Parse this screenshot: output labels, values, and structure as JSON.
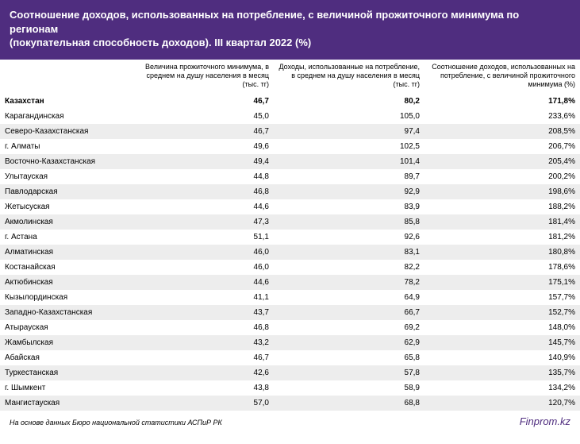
{
  "header": {
    "title_line1": "Соотношение доходов, использованных на потребление, с величиной прожиточного минимума по регионам",
    "title_line2": "(покупательная способность доходов). III квартал 2022 (%)",
    "color": "#4f2d7f"
  },
  "table": {
    "columns": [
      "",
      "Величина прожиточного минимума, в среднем на душу населения в месяц (тыс. тг)",
      "Доходы, использованные на потребление, в среднем на душу населения в месяц (тыс. тг)",
      "Соотношение доходов, использованных на потребление, с величиной прожиточного минимума (%)"
    ],
    "total_row": {
      "region": "Казахстан",
      "v1": "46,7",
      "v2": "80,2",
      "v3": "171,8%"
    },
    "rows": [
      {
        "region": "Карагандинская",
        "v1": "45,0",
        "v2": "105,0",
        "v3": "233,6%"
      },
      {
        "region": "Северо-Казахстанская",
        "v1": "46,7",
        "v2": "97,4",
        "v3": "208,5%"
      },
      {
        "region": "г. Алматы",
        "v1": "49,6",
        "v2": "102,5",
        "v3": "206,7%"
      },
      {
        "region": "Восточно-Казахстанская",
        "v1": "49,4",
        "v2": "101,4",
        "v3": "205,4%"
      },
      {
        "region": "Улытауская",
        "v1": "44,8",
        "v2": "89,7",
        "v3": "200,2%"
      },
      {
        "region": "Павлодарская",
        "v1": "46,8",
        "v2": "92,9",
        "v3": "198,6%"
      },
      {
        "region": "Жетысуская",
        "v1": "44,6",
        "v2": "83,9",
        "v3": "188,2%"
      },
      {
        "region": "Акмолинская",
        "v1": "47,3",
        "v2": "85,8",
        "v3": "181,4%"
      },
      {
        "region": "г. Астана",
        "v1": "51,1",
        "v2": "92,6",
        "v3": "181,2%"
      },
      {
        "region": "Алматинская",
        "v1": "46,0",
        "v2": "83,1",
        "v3": "180,8%"
      },
      {
        "region": "Костанайская",
        "v1": "46,0",
        "v2": "82,2",
        "v3": "178,6%"
      },
      {
        "region": "Актюбинская",
        "v1": "44,6",
        "v2": "78,2",
        "v3": "175,1%"
      },
      {
        "region": "Кызылординская",
        "v1": "41,1",
        "v2": "64,9",
        "v3": "157,7%"
      },
      {
        "region": "Западно-Казахстанская",
        "v1": "43,7",
        "v2": "66,7",
        "v3": "152,7%"
      },
      {
        "region": "Атырауская",
        "v1": "46,8",
        "v2": "69,2",
        "v3": "148,0%"
      },
      {
        "region": "Жамбылская",
        "v1": "43,2",
        "v2": "62,9",
        "v3": "145,7%"
      },
      {
        "region": "Абайская",
        "v1": "46,7",
        "v2": "65,8",
        "v3": "140,9%"
      },
      {
        "region": "Туркестанская",
        "v1": "42,6",
        "v2": "57,8",
        "v3": "135,7%"
      },
      {
        "region": "г. Шымкент",
        "v1": "43,8",
        "v2": "58,9",
        "v3": "134,2%"
      },
      {
        "region": "Мангистауская",
        "v1": "57,0",
        "v2": "68,8",
        "v3": "120,7%"
      }
    ],
    "stripe_color": "#ededed",
    "header_font_size": 9,
    "cell_font_size": 10
  },
  "footer": {
    "source": "На основе данных Бюро национальной статистики АСПиР РК",
    "brand": "Finprom.kz",
    "brand_color": "#4f2d7f"
  }
}
